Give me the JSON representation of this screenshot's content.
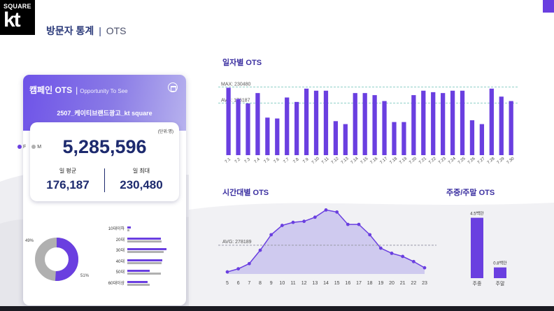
{
  "header": {
    "logo_top": "SQUARE",
    "logo_main": "kt",
    "title_main": "방문자 통계",
    "title_sep": "|",
    "title_sub": "OTS"
  },
  "colors": {
    "accent": "#6a3fe0",
    "navy": "#1d2a6e",
    "gray": "#b0b0b0",
    "area": "#c7c0ee"
  },
  "campaign_card": {
    "title": "캠페인 OTS",
    "bar": "|",
    "subtitle": "Opportunity To See",
    "calendar_icon": "calendar-icon",
    "campaign_name": "2507_케이티브랜드광고_kt square",
    "unit": "(단위:명)",
    "total": "5,285,596",
    "daily_avg_label": "일 평균",
    "daily_avg": "176,187",
    "daily_max_label": "일 최대",
    "daily_max": "230,480"
  },
  "gender": {
    "legend_f": "F",
    "legend_m": "M",
    "female_pct_label": "51%",
    "male_pct_label": "49%",
    "female_share": 0.51,
    "male_share": 0.49
  },
  "age": {
    "rows": [
      {
        "label": "10대이하",
        "f": 0.07,
        "m": 0.04
      },
      {
        "label": "20대",
        "f": 0.68,
        "m": 0.7
      },
      {
        "label": "30대",
        "f": 0.8,
        "m": 0.74
      },
      {
        "label": "40대",
        "f": 0.72,
        "m": 0.7
      },
      {
        "label": "50대",
        "f": 0.46,
        "m": 0.69
      },
      {
        "label": "60대이상",
        "f": 0.42,
        "m": 0.45
      }
    ]
  },
  "daily_chart": {
    "title": "일자별 OTS",
    "max_label": "MAX: 230480",
    "avg_label": "AVG: 176187",
    "max": 230480,
    "avg": 176187,
    "chart_data": {
      "type": "bar",
      "categories": [
        "7.1",
        "7.2",
        "7.3",
        "7.4",
        "7.5",
        "7.6",
        "7.7",
        "7.8",
        "7.9",
        "7.10",
        "7.11",
        "7.12",
        "7.13",
        "7.14",
        "7.15",
        "7.16",
        "7.17",
        "7.18",
        "7.19",
        "7.20",
        "7.21",
        "7.22",
        "7.23",
        "7.24",
        "7.25",
        "7.26",
        "7.27",
        "7.28",
        "7.29",
        "7.30"
      ],
      "values": [
        228000,
        190000,
        175000,
        210000,
        127000,
        124000,
        195000,
        180000,
        225000,
        218000,
        218000,
        115000,
        105000,
        210000,
        210000,
        203000,
        183000,
        112000,
        112000,
        203000,
        218000,
        213000,
        210000,
        218000,
        218000,
        118000,
        105000,
        225000,
        198000,
        183000
      ],
      "ylim": [
        0,
        260000
      ]
    }
  },
  "hourly_chart": {
    "title": "시간대별 OTS",
    "avg_label": "AVG: 278189",
    "avg": 278189,
    "chart_data": {
      "type": "area",
      "x": [
        "5",
        "6",
        "7",
        "8",
        "9",
        "10",
        "11",
        "12",
        "13",
        "14",
        "15",
        "16",
        "17",
        "18",
        "19",
        "20",
        "21",
        "22",
        "23"
      ],
      "values": [
        20000,
        50000,
        100000,
        230000,
        380000,
        470000,
        500000,
        510000,
        550000,
        620000,
        600000,
        480000,
        480000,
        380000,
        250000,
        200000,
        170000,
        120000,
        60000
      ],
      "ylim": [
        0,
        650000
      ]
    }
  },
  "weekday_chart": {
    "title": "주중/주말 OTS",
    "chart_data": {
      "type": "bar",
      "categories": [
        "주중",
        "주말"
      ],
      "values": [
        4.5,
        0.8
      ],
      "value_labels": [
        "4.5백만",
        "0.8백만"
      ],
      "ylim": [
        0,
        5
      ]
    }
  }
}
